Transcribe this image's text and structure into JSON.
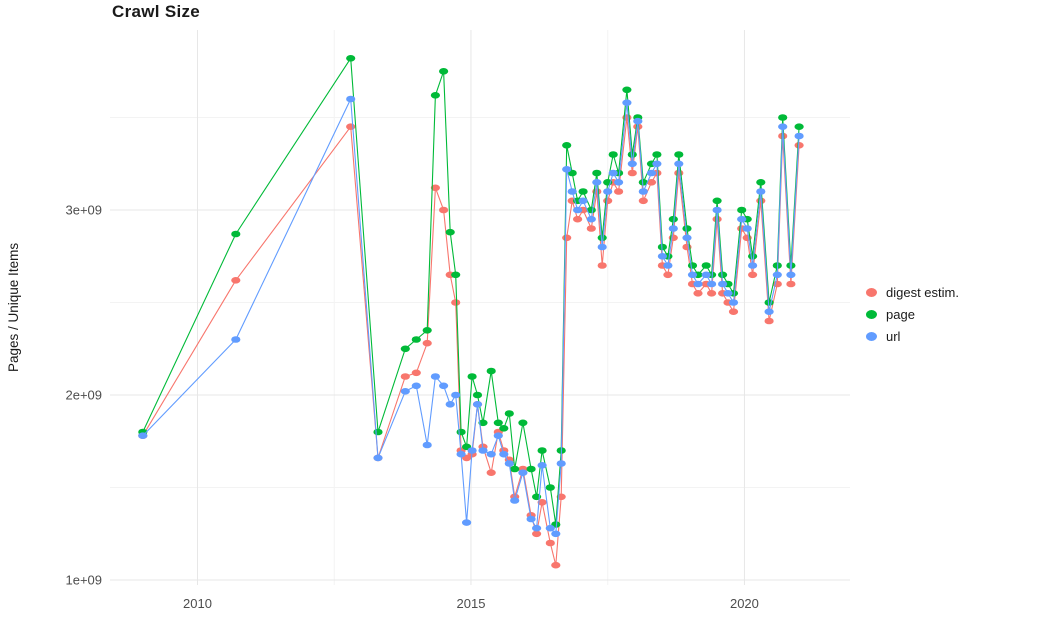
{
  "chart_data": {
    "type": "line",
    "title": "Crawl Size",
    "xlabel": "",
    "ylabel": "Pages / Unique Items",
    "y_unit_scale": 1000000000,
    "x": [
      2009.0,
      2010.7,
      2012.8,
      2013.3,
      2013.8,
      2014.0,
      2014.2,
      2014.35,
      2014.5,
      2014.62,
      2014.72,
      2014.82,
      2014.92,
      2015.02,
      2015.12,
      2015.22,
      2015.37,
      2015.5,
      2015.6,
      2015.7,
      2015.8,
      2015.95,
      2016.1,
      2016.2,
      2016.3,
      2016.45,
      2016.55,
      2016.65,
      2016.75,
      2016.85,
      2016.95,
      2017.05,
      2017.2,
      2017.3,
      2017.4,
      2017.5,
      2017.6,
      2017.7,
      2017.85,
      2017.95,
      2018.05,
      2018.15,
      2018.3,
      2018.4,
      2018.5,
      2018.6,
      2018.7,
      2018.8,
      2018.95,
      2019.05,
      2019.15,
      2019.3,
      2019.4,
      2019.5,
      2019.6,
      2019.7,
      2019.8,
      2019.95,
      2020.05,
      2020.15,
      2020.3,
      2020.45,
      2020.6,
      2020.7,
      2020.85,
      2021.0
    ],
    "series": [
      {
        "name": "digest estim.",
        "color": "#F8766D",
        "values": [
          1.78,
          2.62,
          3.45,
          1.66,
          2.1,
          2.12,
          2.28,
          3.12,
          3.0,
          2.65,
          2.5,
          1.7,
          1.66,
          1.68,
          1.95,
          1.72,
          1.58,
          1.8,
          1.7,
          1.65,
          1.45,
          1.6,
          1.35,
          1.25,
          1.42,
          1.2,
          1.08,
          1.45,
          2.85,
          3.05,
          2.95,
          3.0,
          2.9,
          3.1,
          2.7,
          3.05,
          3.15,
          3.1,
          3.5,
          3.2,
          3.45,
          3.05,
          3.15,
          3.2,
          2.7,
          2.65,
          2.85,
          3.2,
          2.8,
          2.6,
          2.55,
          2.6,
          2.55,
          2.95,
          2.55,
          2.5,
          2.45,
          2.9,
          2.85,
          2.65,
          3.05,
          2.4,
          2.6,
          3.4,
          2.6,
          3.35
        ]
      },
      {
        "name": "page",
        "color": "#00BA38",
        "values": [
          1.8,
          2.87,
          3.82,
          1.8,
          2.25,
          2.3,
          2.35,
          3.62,
          3.75,
          2.88,
          2.65,
          1.8,
          1.72,
          2.1,
          2.0,
          1.85,
          2.13,
          1.85,
          1.82,
          1.9,
          1.6,
          1.85,
          1.6,
          1.45,
          1.7,
          1.5,
          1.3,
          1.7,
          3.35,
          3.2,
          3.05,
          3.1,
          3.0,
          3.2,
          2.85,
          3.15,
          3.3,
          3.2,
          3.65,
          3.3,
          3.5,
          3.15,
          3.25,
          3.3,
          2.8,
          2.75,
          2.95,
          3.3,
          2.9,
          2.7,
          2.65,
          2.7,
          2.65,
          3.05,
          2.65,
          2.6,
          2.55,
          3.0,
          2.95,
          2.75,
          3.15,
          2.5,
          2.7,
          3.5,
          2.7,
          3.45
        ]
      },
      {
        "name": "url",
        "color": "#619CFF",
        "values": [
          1.78,
          2.3,
          3.6,
          1.66,
          2.02,
          2.05,
          1.73,
          2.1,
          2.05,
          1.95,
          2.0,
          1.68,
          1.31,
          1.7,
          1.95,
          1.7,
          1.68,
          1.78,
          1.68,
          1.63,
          1.43,
          1.58,
          1.33,
          1.28,
          1.62,
          1.28,
          1.25,
          1.63,
          3.22,
          3.1,
          3.0,
          3.05,
          2.95,
          3.15,
          2.8,
          3.1,
          3.2,
          3.15,
          3.58,
          3.25,
          3.48,
          3.1,
          3.2,
          3.25,
          2.75,
          2.7,
          2.9,
          3.25,
          2.85,
          2.65,
          2.6,
          2.65,
          2.6,
          3.0,
          2.6,
          2.55,
          2.5,
          2.95,
          2.9,
          2.7,
          3.1,
          2.45,
          2.65,
          3.45,
          2.65,
          3.4
        ]
      }
    ],
    "xticks": [
      {
        "value": 2010,
        "label": "2010"
      },
      {
        "value": 2015,
        "label": "2015"
      },
      {
        "value": 2020,
        "label": "2020"
      }
    ],
    "yticks": [
      {
        "value": 1,
        "label": "1e+09"
      },
      {
        "value": 2,
        "label": "2e+09"
      },
      {
        "value": 3,
        "label": "3e+09"
      }
    ],
    "minor_xticks": [
      2012.5,
      2017.5
    ],
    "minor_yticks": [
      1.5,
      2.5,
      3.5
    ],
    "xlim": [
      2008.4,
      2021.93
    ],
    "ylim": [
      1.0,
      3.973
    ],
    "grid": true,
    "legend_position": "right",
    "tick_label_color": "#4d4d4d",
    "grid_color_major": "#e7e7e7",
    "grid_color_minor": "#f3f3f3",
    "background": "#ffffff"
  }
}
